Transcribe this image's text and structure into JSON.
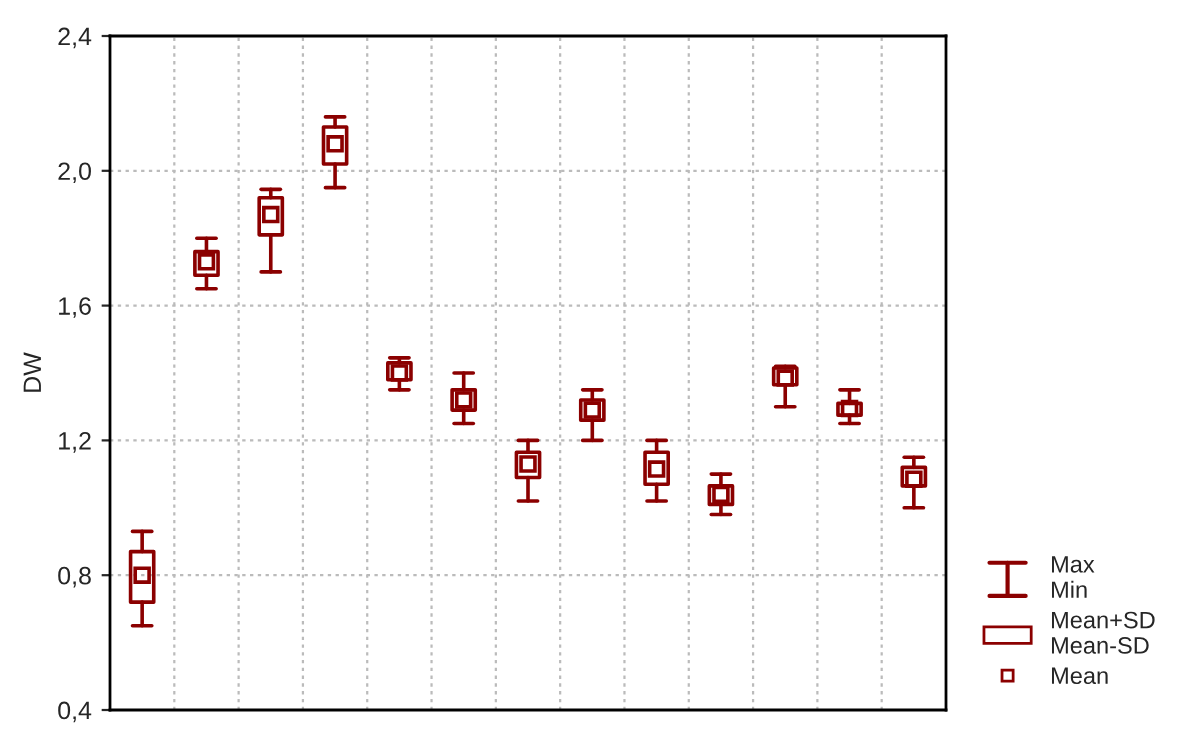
{
  "chart_data": {
    "type": "box",
    "ylabel": "DW",
    "categories": [
      null,
      null,
      null,
      null,
      null,
      null,
      null,
      null,
      null,
      null,
      null,
      null,
      null
    ],
    "boxes": [
      {
        "low": 0.65,
        "q1": 0.72,
        "mean": 0.8,
        "q3": 0.87,
        "high": 0.93
      },
      {
        "low": 1.65,
        "q1": 1.69,
        "mean": 1.73,
        "q3": 1.76,
        "high": 1.8
      },
      {
        "low": 1.7,
        "q1": 1.81,
        "mean": 1.87,
        "q3": 1.92,
        "high": 1.945
      },
      {
        "low": 1.95,
        "q1": 2.02,
        "mean": 2.08,
        "q3": 2.13,
        "high": 2.16
      },
      {
        "low": 1.35,
        "q1": 1.38,
        "mean": 1.4,
        "q3": 1.43,
        "high": 1.445
      },
      {
        "low": 1.25,
        "q1": 1.29,
        "mean": 1.32,
        "q3": 1.35,
        "high": 1.4
      },
      {
        "low": 1.02,
        "q1": 1.09,
        "mean": 1.13,
        "q3": 1.165,
        "high": 1.2
      },
      {
        "low": 1.2,
        "q1": 1.26,
        "mean": 1.29,
        "q3": 1.32,
        "high": 1.35
      },
      {
        "low": 1.02,
        "q1": 1.07,
        "mean": 1.115,
        "q3": 1.165,
        "high": 1.2
      },
      {
        "low": 0.98,
        "q1": 1.01,
        "mean": 1.04,
        "q3": 1.065,
        "high": 1.1
      },
      {
        "low": 1.3,
        "q1": 1.365,
        "mean": 1.385,
        "q3": 1.415,
        "high": 1.42
      },
      {
        "low": 1.25,
        "q1": 1.275,
        "mean": 1.295,
        "q3": 1.31,
        "high": 1.35
      },
      {
        "low": 1.0,
        "q1": 1.065,
        "mean": 1.085,
        "q3": 1.12,
        "high": 1.15
      }
    ],
    "color": "#8b0000",
    "ylim": [
      0.4,
      2.4
    ],
    "yticks": [
      {
        "value": 0.4,
        "label": "0,4"
      },
      {
        "value": 0.8,
        "label": "0,8"
      },
      {
        "value": 1.2,
        "label": "1,2"
      },
      {
        "value": 1.6,
        "label": "1,6"
      },
      {
        "value": 2.0,
        "label": "2,0"
      },
      {
        "value": 2.4,
        "label": "2,4"
      }
    ],
    "grid": true,
    "annotations": [
      "Max\nMin",
      "Mean+SD\nMean-SD",
      "Mean"
    ]
  }
}
